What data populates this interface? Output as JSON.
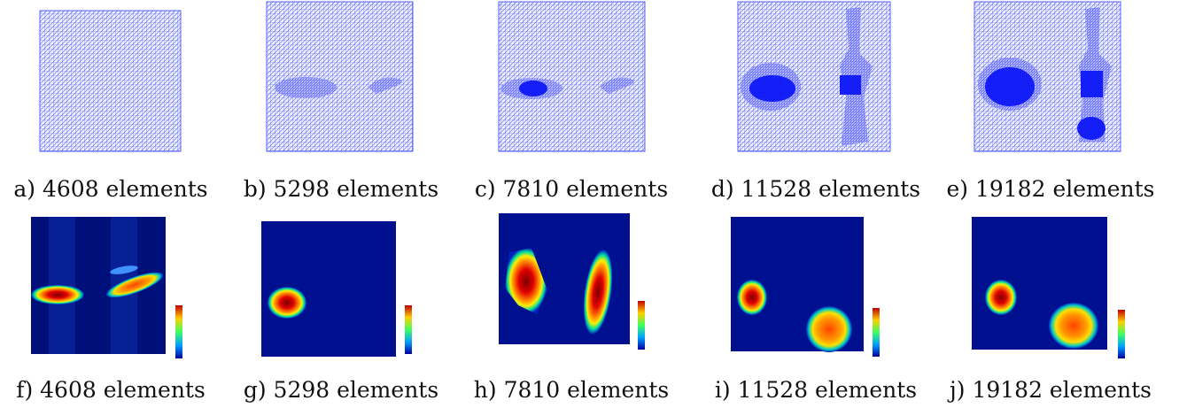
{
  "panels": [
    {
      "caption": "a) 4608 elements"
    },
    {
      "caption": "b) 5298 elements"
    },
    {
      "caption": "c) 7810 elements"
    },
    {
      "caption": "d) 11528 elements"
    },
    {
      "caption": "e) 19182 elements"
    },
    {
      "caption": "f) 4608 elements"
    },
    {
      "caption": "g) 5298 elements"
    },
    {
      "caption": "h) 7810 elements"
    },
    {
      "caption": "i) 11528 elements"
    },
    {
      "caption": "j) 19182 elements"
    }
  ]
}
